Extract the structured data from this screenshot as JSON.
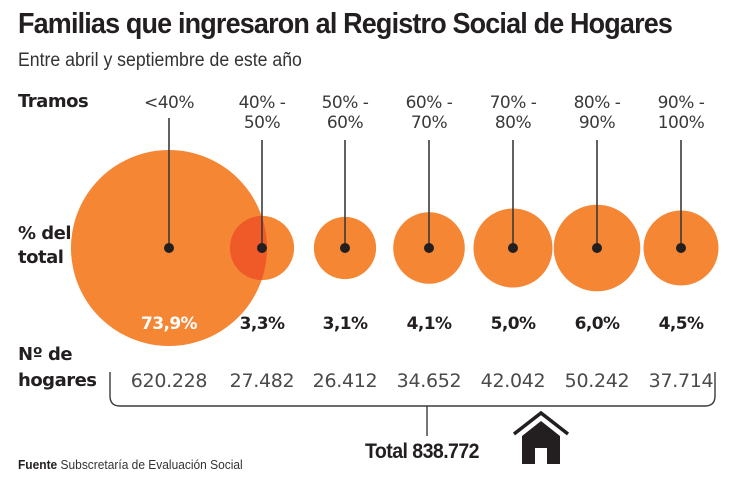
{
  "header": {
    "title": "Familias que ingresaron al Registro Social de Hogares",
    "subtitle": "Entre abril y septiembre de este año"
  },
  "row_labels": {
    "tramos": "Tramos",
    "pct_line1": "% del",
    "pct_line2": "total",
    "hogares_line1": "Nº de",
    "hogares_line2": "hogares"
  },
  "chart_data": {
    "type": "bubble",
    "title": "Familias que ingresaron al Registro Social de Hogares",
    "subtitle": "Entre abril y septiembre de este año",
    "categories": [
      {
        "line1": "<40%",
        "line2": ""
      },
      {
        "line1": "40% -",
        "line2": "50%"
      },
      {
        "line1": "50% -",
        "line2": "60%"
      },
      {
        "line1": "60% -",
        "line2": "70%"
      },
      {
        "line1": "70% -",
        "line2": "80%"
      },
      {
        "line1": "80% -",
        "line2": "90%"
      },
      {
        "line1": "90% -",
        "line2": "100%"
      }
    ],
    "percent_values": [
      73.9,
      3.3,
      3.1,
      4.1,
      5.0,
      6.0,
      4.5
    ],
    "percent_labels": [
      "73,9%",
      "3,3%",
      "3,1%",
      "4,1%",
      "5,0%",
      "6,0%",
      "4,5%"
    ],
    "households": [
      620228,
      27482,
      26412,
      34652,
      42042,
      50242,
      37714
    ],
    "household_labels": [
      "620.228",
      "27.482",
      "26.412",
      "34.652",
      "42.042",
      "50.242",
      "37.714"
    ],
    "total_label": "Total 838.772",
    "total": 838772,
    "colors": {
      "bubble": "#f58634",
      "overlap": "#ef5a28",
      "dot": "#231f20",
      "line": "#3a3a3a"
    }
  },
  "footer": {
    "source_label": "Fuente",
    "source_text": "Subscretaría de Evaluación Social"
  },
  "icons": {
    "total": "house-icon"
  }
}
